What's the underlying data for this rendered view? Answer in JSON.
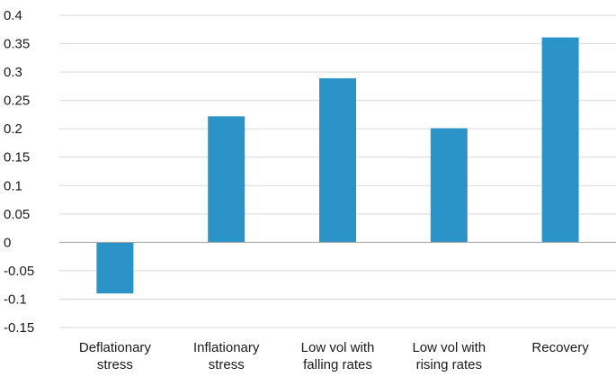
{
  "chart_data": {
    "type": "bar",
    "title": "",
    "xlabel": "",
    "ylabel": "",
    "categories": [
      [
        "Deflationary",
        "stress"
      ],
      [
        "Inflationary",
        "stress"
      ],
      [
        "Low vol with",
        "falling rates"
      ],
      [
        "Low vol with",
        "rising rates"
      ],
      [
        "Recovery"
      ]
    ],
    "values": [
      -0.09,
      0.222,
      0.289,
      0.201,
      0.361
    ],
    "ylim": [
      -0.15,
      0.4
    ],
    "yticks": [
      "0.4",
      "0.35",
      "0.3",
      "0.25",
      "0.2",
      "0.15",
      "0.1",
      "0.05",
      "0",
      "-0.05",
      "-0.1",
      "-0.15"
    ],
    "grid": true,
    "legend": "none",
    "bar_color": "#2B93C8"
  }
}
